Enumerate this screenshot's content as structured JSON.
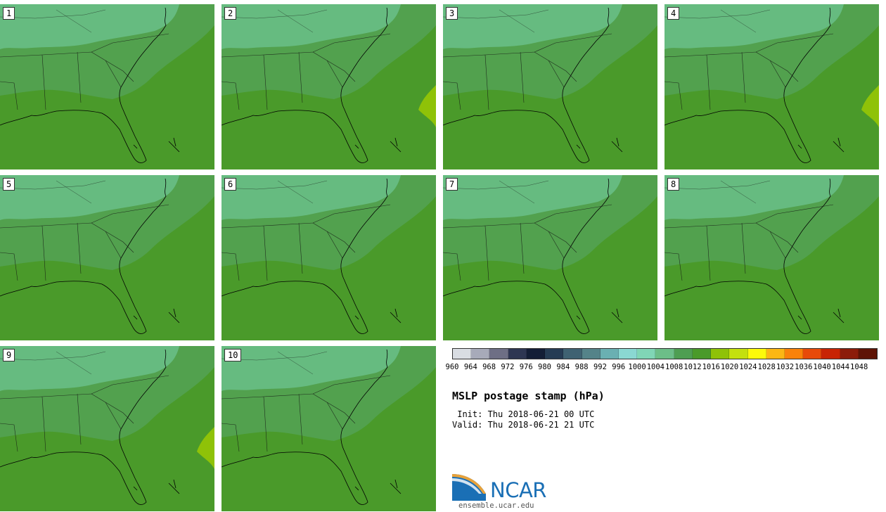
{
  "panels": [
    {
      "label": "1"
    },
    {
      "label": "2"
    },
    {
      "label": "3"
    },
    {
      "label": "4"
    },
    {
      "label": "5"
    },
    {
      "label": "6"
    },
    {
      "label": "7"
    },
    {
      "label": "8"
    },
    {
      "label": "9"
    },
    {
      "label": "10"
    }
  ],
  "colorbar": {
    "levels": [
      "960",
      "964",
      "968",
      "972",
      "976",
      "980",
      "984",
      "988",
      "992",
      "996",
      "1000",
      "1004",
      "1008",
      "1012",
      "1016",
      "1020",
      "1024",
      "1028",
      "1032",
      "1036",
      "1040",
      "1044",
      "1048"
    ],
    "colors": [
      "#d9dde3",
      "#a7aab9",
      "#6e6f85",
      "#2e3652",
      "#141e36",
      "#263c54",
      "#3f6272",
      "#548389",
      "#6ab0b2",
      "#8ad8d2",
      "#80d6b6",
      "#6cbe88",
      "#4e9e52",
      "#4a9a2a",
      "#8fc208",
      "#c4e00e",
      "#fdfa0a",
      "#fcb714",
      "#fa820a",
      "#e84a0a",
      "#c82404",
      "#8c1c0a",
      "#5e1406"
    ]
  },
  "title": "MSLP postage stamp (hPa)",
  "init": " Init: Thu 2018-06-21 00 UTC",
  "valid": "Valid: Thu 2018-06-21 21 UTC",
  "logo": {
    "text": "NCAR",
    "url": "ensemble.ucar.edu"
  },
  "field_colors": {
    "light": "#66bb80",
    "mid": "#52a14e",
    "base": "#4a9a2a",
    "high": "#8fc208"
  }
}
